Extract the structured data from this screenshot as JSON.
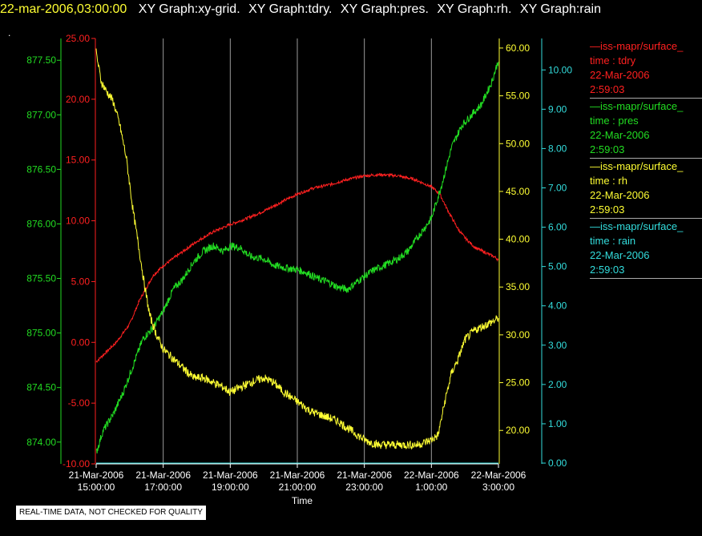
{
  "header": {
    "timestamp": "22-mar-2006,03:00:00",
    "graphs": [
      "XY Graph:xy-grid.",
      "XY Graph:tdry.",
      "XY Graph:pres.",
      "XY Graph:rh.",
      "XY Graph:rain"
    ],
    "dot": "."
  },
  "legend": [
    {
      "name": "iss-mapr/surface_",
      "field": "time : tdry",
      "date": "22-Mar-2006",
      "time": "2:59:03",
      "color": "#ff2020"
    },
    {
      "name": "iss-mapr/surface_",
      "field": "time : pres",
      "date": "22-Mar-2006",
      "time": "2:59:03",
      "color": "#22dd22"
    },
    {
      "name": "iss-mapr/surface_",
      "field": "time : rh",
      "date": "22-Mar-2006",
      "time": "2:59:03",
      "color": "#ffff33"
    },
    {
      "name": "iss-mapr/surface_",
      "field": "time : rain",
      "date": "22-Mar-2006",
      "time": "2:59:03",
      "color": "#33dddd"
    }
  ],
  "disclaimer": "REAL-TIME DATA, NOT CHECKED FOR QUALITY",
  "chart_data": {
    "type": "line",
    "xlabel": "Time",
    "x_ticks": [
      {
        "l1": "21-Mar-2006",
        "l2": "15:00:00",
        "h": 15
      },
      {
        "l1": "21-Mar-2006",
        "l2": "17:00:00",
        "h": 17
      },
      {
        "l1": "21-Mar-2006",
        "l2": "19:00:00",
        "h": 19
      },
      {
        "l1": "21-Mar-2006",
        "l2": "21:00:00",
        "h": 21
      },
      {
        "l1": "21-Mar-2006",
        "l2": "23:00:00",
        "h": 23
      },
      {
        "l1": "22-Mar-2006",
        "l2": "1:00:00",
        "h": 25
      },
      {
        "l1": "22-Mar-2006",
        "l2": "3:00:00",
        "h": 27
      }
    ],
    "xlim": [
      15,
      27
    ],
    "grid": "vertical",
    "axes": {
      "pres": {
        "color": "#22dd22",
        "lim": [
          873.8,
          877.7
        ],
        "ticks": [
          "874.00",
          "874.50",
          "875.00",
          "875.50",
          "876.00",
          "876.50",
          "877.00",
          "877.50"
        ]
      },
      "tdry": {
        "color": "#ff2020",
        "lim": [
          -10,
          25
        ],
        "ticks": [
          "-10.00",
          "-5.00",
          "0.00",
          "5.00",
          "10.00",
          "15.00",
          "20.00",
          "25.00"
        ]
      },
      "rh": {
        "color": "#ffff33",
        "lim": [
          16.5,
          61
        ],
        "ticks": [
          "20.00",
          "25.00",
          "30.00",
          "35.00",
          "40.00",
          "45.00",
          "50.00",
          "55.00",
          "60.00"
        ]
      },
      "rain": {
        "color": "#33dddd",
        "lim": [
          -0.02,
          10.8
        ],
        "ticks": [
          "0.00",
          "1.00",
          "2.00",
          "3.00",
          "4.00",
          "5.00",
          "6.00",
          "7.00",
          "8.00",
          "9.00",
          "10.00"
        ]
      }
    },
    "series": [
      {
        "key": "tdry",
        "axis": "tdry",
        "color": "#ff2020",
        "x": [
          15,
          15.3,
          15.6,
          16,
          16.3,
          16.7,
          17,
          17.5,
          18,
          18.5,
          19,
          19.5,
          20,
          20.5,
          21,
          21.5,
          22,
          22.5,
          23,
          23.5,
          24,
          24.5,
          25,
          25.25,
          25.5,
          25.8,
          26,
          26.3,
          26.6,
          26.9,
          27
        ],
        "y": [
          -1.6,
          -0.8,
          0,
          1.5,
          3.5,
          5.5,
          6.3,
          7.3,
          8.3,
          9.1,
          9.7,
          10.2,
          10.8,
          11.5,
          12.2,
          12.7,
          13.0,
          13.4,
          13.7,
          13.8,
          13.7,
          13.4,
          12.8,
          12.2,
          10.8,
          9.3,
          8.6,
          7.8,
          7.4,
          7.0,
          6.8
        ],
        "noise": 0.12
      },
      {
        "key": "pres",
        "axis": "pres",
        "color": "#22dd22",
        "x": [
          15,
          15.2,
          15.5,
          15.8,
          16.1,
          16.4,
          16.7,
          17,
          17.3,
          17.6,
          17.9,
          18.2,
          18.5,
          18.8,
          19,
          19.3,
          19.6,
          20,
          20.3,
          20.6,
          21,
          21.3,
          21.6,
          21.9,
          22.2,
          22.5,
          22.7,
          23,
          23.3,
          23.6,
          24,
          24.3,
          24.6,
          25,
          25.3,
          25.6,
          25.9,
          26.2,
          26.5,
          26.8,
          27
        ],
        "y": [
          873.9,
          874.1,
          874.25,
          874.45,
          874.7,
          874.95,
          875.05,
          875.2,
          875.4,
          875.5,
          875.65,
          875.75,
          875.8,
          875.75,
          875.8,
          875.78,
          875.7,
          875.68,
          875.62,
          875.6,
          875.58,
          875.55,
          875.5,
          875.47,
          875.42,
          875.4,
          875.45,
          875.52,
          875.58,
          875.62,
          875.68,
          875.75,
          875.88,
          876.05,
          876.35,
          876.7,
          876.9,
          877.0,
          877.1,
          877.3,
          877.5
        ],
        "noise": 0.035
      },
      {
        "key": "rh",
        "axis": "rh",
        "color": "#ffff33",
        "x": [
          15,
          15.15,
          15.3,
          15.5,
          15.7,
          15.9,
          16.1,
          16.3,
          16.45,
          16.6,
          16.8,
          17,
          17.3,
          17.6,
          17.9,
          18.2,
          18.5,
          18.8,
          19,
          19.3,
          19.6,
          20,
          20.3,
          20.6,
          21,
          21.4,
          21.8,
          22.2,
          22.6,
          23,
          23.4,
          23.8,
          24.2,
          24.6,
          25,
          25.2,
          25.4,
          25.6,
          25.8,
          26,
          26.3,
          26.6,
          26.9,
          27
        ],
        "y": [
          59.5,
          56.5,
          55.5,
          54.5,
          52,
          48.5,
          43,
          38.5,
          35,
          32,
          30,
          28.5,
          27.5,
          26.5,
          25.5,
          25.5,
          25,
          24.5,
          24,
          24.5,
          25,
          25.5,
          25,
          24,
          23,
          22,
          21.5,
          21,
          20,
          19,
          18.5,
          18.5,
          18.5,
          18.5,
          19,
          19.5,
          23,
          26,
          27.5,
          29.5,
          30.5,
          31,
          31.5,
          31.8
        ],
        "noise": 0.45
      },
      {
        "key": "rain",
        "axis": "rain",
        "color": "#33dddd",
        "x": [
          15,
          27
        ],
        "y": [
          0,
          0
        ],
        "noise": 0
      }
    ]
  }
}
